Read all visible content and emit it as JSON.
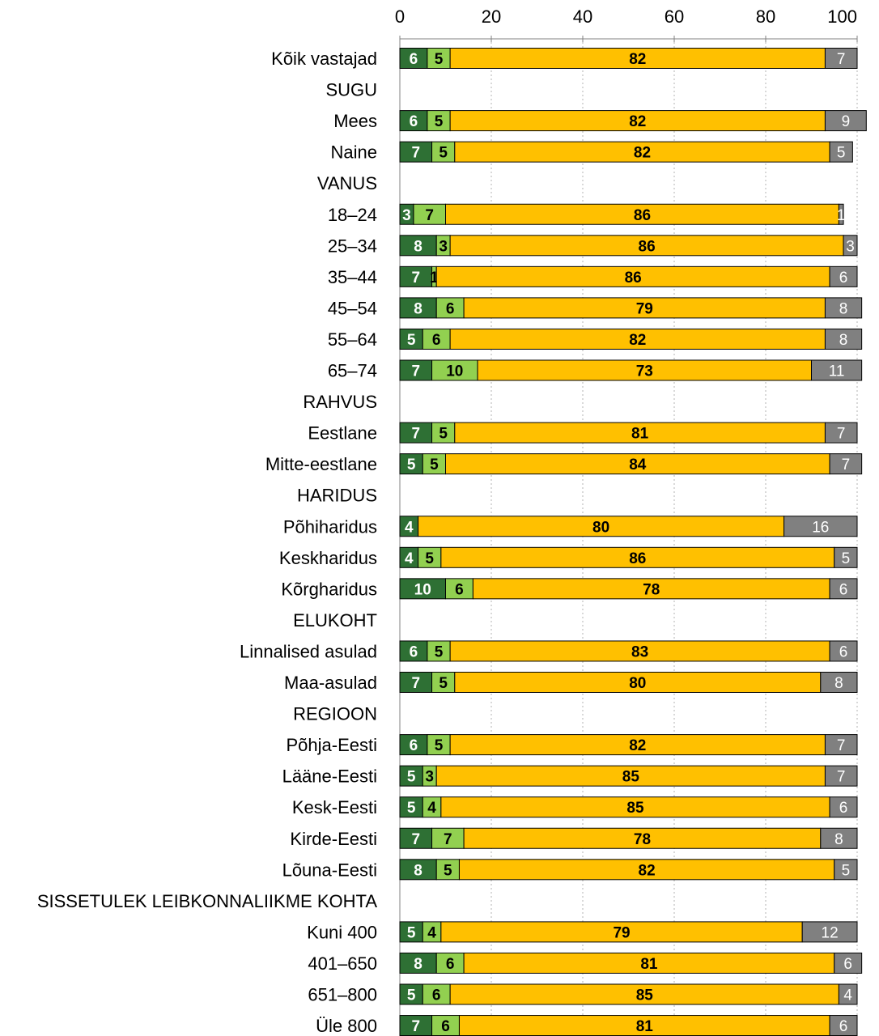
{
  "chart_data": {
    "type": "bar",
    "orientation": "horizontal",
    "stacked": true,
    "xlim": [
      0,
      100
    ],
    "x_ticks": [
      "0",
      "20",
      "40",
      "60",
      "80",
      "100"
    ],
    "x_tick_values": [
      0,
      20,
      40,
      60,
      80,
      100
    ],
    "grid": true,
    "legend": "none",
    "series_colors": [
      "#2e7034",
      "#92d050",
      "#ffc000",
      "#808080"
    ],
    "categories": [
      "Kõik vastajad",
      "SUGU",
      "Mees",
      "Naine",
      "VANUS",
      "18–24",
      "25–34",
      "35–44",
      "45–54",
      "55–64",
      "65–74",
      "RAHVUS",
      "Eestlane",
      "Mitte-eestlane",
      "HARIDUS",
      "Põhiharidus",
      "Keskharidus",
      "Kõrgharidus",
      "ELUKOHT",
      "Linnalised asulad",
      "Maa-asulad",
      "REGIOON",
      "Põhja-Eesti",
      "Lääne-Eesti",
      "Kesk-Eesti",
      "Kirde-Eesti",
      "Lõuna-Eesti",
      "SISSETULEK LEIBKONNALIIKME KOHTA",
      "Kuni 400",
      "401–650",
      "651–800",
      "Üle 800"
    ],
    "series": [
      {
        "values": [
          6,
          null,
          6,
          7,
          null,
          3,
          8,
          7,
          8,
          5,
          7,
          null,
          7,
          5,
          null,
          4,
          4,
          10,
          null,
          6,
          7,
          null,
          6,
          5,
          5,
          7,
          8,
          null,
          5,
          8,
          5,
          7
        ]
      },
      {
        "values": [
          5,
          null,
          5,
          5,
          null,
          7,
          3,
          1,
          6,
          6,
          10,
          null,
          5,
          5,
          null,
          0,
          5,
          6,
          null,
          5,
          5,
          null,
          5,
          3,
          4,
          7,
          5,
          null,
          4,
          6,
          6,
          6
        ]
      },
      {
        "values": [
          82,
          null,
          82,
          82,
          null,
          86,
          86,
          86,
          79,
          82,
          73,
          null,
          81,
          84,
          null,
          80,
          86,
          78,
          null,
          83,
          80,
          null,
          82,
          85,
          85,
          78,
          82,
          null,
          79,
          81,
          85,
          81
        ]
      },
      {
        "values": [
          7,
          null,
          9,
          5,
          null,
          1,
          3,
          6,
          8,
          8,
          11,
          null,
          7,
          7,
          null,
          16,
          5,
          6,
          null,
          6,
          8,
          null,
          7,
          7,
          6,
          8,
          5,
          null,
          12,
          6,
          4,
          6
        ]
      }
    ]
  }
}
